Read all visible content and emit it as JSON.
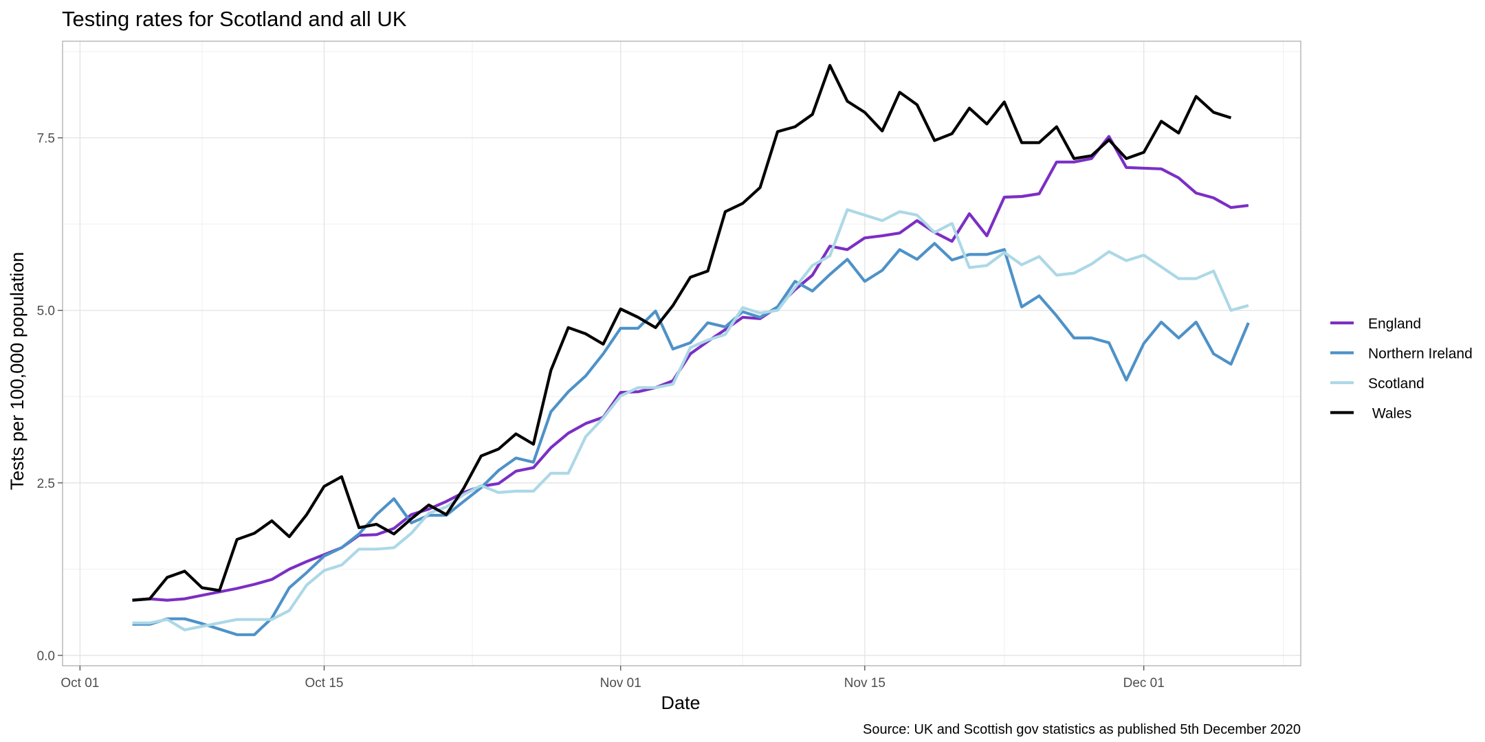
{
  "chart_data": {
    "type": "line",
    "title": "Testing rates for Scotland and all UK",
    "xlabel": "Date",
    "ylabel": "Tests per 100,000 population",
    "caption": "Source: UK and Scottish gov statistics as published 5th December 2020",
    "x_start": "2020-10-04",
    "xlim": [
      "2020-09-30",
      "2020-12-10"
    ],
    "ylim": [
      -0.15,
      8.9
    ],
    "x_ticks": [
      {
        "date": "2020-10-01",
        "label": "Oct 01"
      },
      {
        "date": "2020-10-15",
        "label": "Oct 15"
      },
      {
        "date": "2020-11-01",
        "label": "Nov 01"
      },
      {
        "date": "2020-11-15",
        "label": "Nov 15"
      },
      {
        "date": "2020-12-01",
        "label": "Dec 01"
      }
    ],
    "y_ticks": [
      {
        "value": 0,
        "label": "0.0"
      },
      {
        "value": 2.5,
        "label": "2.5"
      },
      {
        "value": 5,
        "label": "5.0"
      },
      {
        "value": 7.5,
        "label": "7.5"
      }
    ],
    "grid": true,
    "legend_position": "right",
    "series": [
      {
        "name": "England",
        "color": "#7b2fc4",
        "values": [
          0.8,
          0.82,
          0.8,
          0.82,
          0.87,
          0.92,
          0.97,
          1.03,
          1.1,
          1.25,
          1.36,
          1.46,
          1.56,
          1.74,
          1.75,
          1.84,
          2.04,
          2.12,
          2.23,
          2.36,
          2.45,
          2.49,
          2.67,
          2.72,
          3.01,
          3.22,
          3.36,
          3.45,
          3.81,
          3.82,
          3.88,
          3.98,
          4.37,
          4.55,
          4.72,
          4.9,
          4.88,
          5.05,
          5.3,
          5.51,
          5.93,
          5.88,
          6.05,
          6.08,
          6.12,
          6.3,
          6.13,
          6.0,
          6.4,
          6.08,
          6.64,
          6.65,
          6.69,
          7.15,
          7.15,
          7.2,
          7.52,
          7.07,
          7.06,
          7.05,
          6.92,
          6.7,
          6.63,
          6.49,
          6.52
        ]
      },
      {
        "name": "Northern Ireland",
        "color": "#4e92c8",
        "values": [
          0.45,
          0.45,
          0.53,
          0.53,
          0.46,
          0.38,
          0.3,
          0.3,
          0.54,
          0.98,
          1.2,
          1.44,
          1.56,
          1.76,
          2.04,
          2.27,
          1.92,
          2.03,
          2.03,
          2.23,
          2.43,
          2.68,
          2.86,
          2.8,
          3.53,
          3.82,
          4.05,
          4.37,
          4.74,
          4.74,
          4.99,
          4.44,
          4.53,
          4.82,
          4.76,
          4.98,
          4.9,
          5.05,
          5.42,
          5.28,
          5.52,
          5.74,
          5.42,
          5.58,
          5.88,
          5.74,
          5.97,
          5.73,
          5.81,
          5.81,
          5.88,
          5.05,
          5.21,
          4.92,
          4.6,
          4.6,
          4.53,
          3.99,
          4.52,
          4.83,
          4.6,
          4.83,
          4.37,
          4.22,
          4.82
        ]
      },
      {
        "name": "Scotland",
        "color": "#acd8e6",
        "values": [
          0.47,
          0.47,
          0.52,
          0.37,
          0.42,
          0.47,
          0.52,
          0.52,
          0.52,
          0.65,
          1.02,
          1.23,
          1.31,
          1.54,
          1.54,
          1.56,
          1.77,
          2.06,
          2.15,
          2.33,
          2.46,
          2.36,
          2.38,
          2.38,
          2.64,
          2.64,
          3.17,
          3.44,
          3.76,
          3.88,
          3.88,
          3.93,
          4.46,
          4.57,
          4.65,
          5.04,
          4.96,
          5.0,
          5.33,
          5.65,
          5.79,
          6.46,
          6.38,
          6.3,
          6.43,
          6.38,
          6.13,
          6.26,
          5.62,
          5.65,
          5.84,
          5.66,
          5.78,
          5.51,
          5.54,
          5.67,
          5.85,
          5.72,
          5.8,
          5.63,
          5.46,
          5.46,
          5.57,
          5.0,
          5.07
        ]
      },
      {
        "name": " Wales",
        "color": "#000000",
        "values": [
          0.8,
          0.82,
          1.13,
          1.22,
          0.98,
          0.94,
          1.68,
          1.77,
          1.95,
          1.72,
          2.04,
          2.45,
          2.59,
          1.85,
          1.9,
          1.76,
          1.98,
          2.18,
          2.04,
          2.42,
          2.89,
          2.99,
          3.21,
          3.06,
          4.13,
          4.75,
          4.66,
          4.51,
          5.02,
          4.9,
          4.75,
          5.07,
          5.48,
          5.57,
          6.43,
          6.55,
          6.78,
          7.59,
          7.66,
          7.84,
          8.55,
          8.03,
          7.87,
          7.6,
          8.16,
          7.98,
          7.46,
          7.56,
          7.93,
          7.7,
          8.02,
          7.43,
          7.43,
          7.66,
          7.2,
          7.24,
          7.47,
          7.2,
          7.29,
          7.74,
          7.57,
          8.1,
          7.87,
          7.79
        ]
      }
    ]
  }
}
